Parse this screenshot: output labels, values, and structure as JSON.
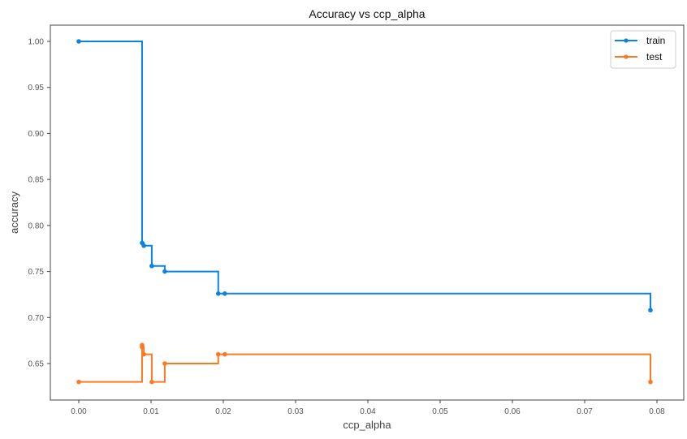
{
  "chart_data": {
    "type": "line",
    "drawstyle": "steps-post",
    "title": "Accuracy vs ccp_alpha",
    "xlabel": "ccp_alpha",
    "ylabel": "accuracy",
    "xlim": [
      -0.004,
      0.0825
    ],
    "ylim": [
      0.612,
      1.018
    ],
    "xticks": [
      0.0,
      0.01,
      0.02,
      0.03,
      0.04,
      0.05,
      0.06,
      0.07,
      0.08
    ],
    "xtick_labels": [
      "0.00",
      "0.01",
      "0.02",
      "0.03",
      "0.04",
      "0.05",
      "0.06",
      "0.07",
      "0.08"
    ],
    "yticks": [
      0.65,
      0.7,
      0.75,
      0.8,
      0.85,
      0.9,
      0.95,
      1.0
    ],
    "ytick_labels": [
      "0.65",
      "0.70",
      "0.75",
      "0.80",
      "0.85",
      "0.90",
      "0.95",
      "1.00"
    ],
    "grid": false,
    "legend_position": "upper right",
    "series": [
      {
        "name": "train",
        "color": "#0a84e0",
        "marker": "o",
        "x": [
          0.0,
          0.00876,
          0.009,
          0.0101,
          0.0119,
          0.0193,
          0.0202,
          0.0791
        ],
        "y": [
          1.0,
          0.781,
          0.778,
          0.756,
          0.75,
          0.726,
          0.726,
          0.708
        ]
      },
      {
        "name": "test",
        "color": "#fb7a21",
        "marker": "o",
        "x": [
          0.0,
          0.00876,
          0.00876,
          0.009,
          0.0101,
          0.0119,
          0.0193,
          0.0202,
          0.0791
        ],
        "y": [
          0.63,
          0.67,
          0.668,
          0.66,
          0.63,
          0.65,
          0.66,
          0.66,
          0.63
        ]
      }
    ]
  }
}
